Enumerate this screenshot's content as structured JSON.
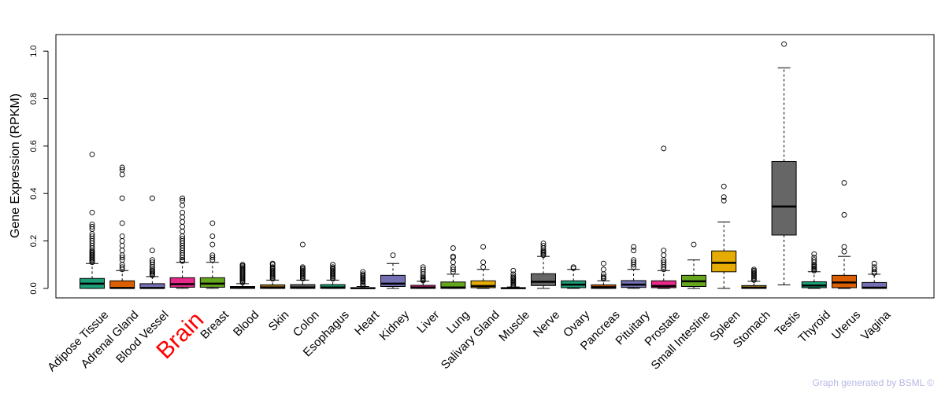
{
  "chart_data": {
    "type": "boxplot",
    "ylabel": "Gene Expression (RPKM)",
    "ylim": [
      -0.04,
      1.07
    ],
    "yticks": [
      0.0,
      0.2,
      0.4,
      0.6,
      0.8,
      1.0
    ],
    "ytick_labels": [
      "0.0",
      "0.2",
      "0.4",
      "0.6",
      "0.8",
      "1.0"
    ],
    "grid": false,
    "highlight_category": "Brain",
    "highlight_color": "#ff0000",
    "categories": [
      "Adipose Tissue",
      "Adrenal Gland",
      "Blood Vessel",
      "Brain",
      "Breast",
      "Blood",
      "Skin",
      "Colon",
      "Esophagus",
      "Heart",
      "Kidney",
      "Liver",
      "Lung",
      "Salivary Gland",
      "Muscle",
      "Nerve",
      "Ovary",
      "Pancreas",
      "Pituitary",
      "Prostate",
      "Small Intestine",
      "Spleen",
      "Stomach",
      "Testis",
      "Thyroid",
      "Uterus",
      "Vagina"
    ],
    "colors": [
      "#1b9e77",
      "#d95f02",
      "#7570b3",
      "#e7298a",
      "#66a61e",
      "#e6ab02",
      "#a6761d",
      "#666666",
      "#1b9e77",
      "#d95f02",
      "#7570b3",
      "#e7298a",
      "#66a61e",
      "#e6ab02",
      "#a6761d",
      "#666666",
      "#1b9e77",
      "#d95f02",
      "#7570b3",
      "#e7298a",
      "#66a61e",
      "#e6ab02",
      "#a6761d",
      "#666666",
      "#1b9e77",
      "#d95f02",
      "#7570b3"
    ],
    "boxes": [
      {
        "min": 0.0,
        "q1": 0.0,
        "median": 0.02,
        "q3": 0.042,
        "max": 0.105,
        "outliers": [
          0.11,
          0.115,
          0.12,
          0.125,
          0.13,
          0.135,
          0.14,
          0.145,
          0.15,
          0.155,
          0.16,
          0.17,
          0.18,
          0.19,
          0.2,
          0.21,
          0.22,
          0.23,
          0.25,
          0.26,
          0.27,
          0.32,
          0.565
        ]
      },
      {
        "min": 0.0,
        "q1": 0.0,
        "median": 0.002,
        "q3": 0.032,
        "max": 0.075,
        "outliers": [
          0.08,
          0.09,
          0.1,
          0.12,
          0.13,
          0.14,
          0.16,
          0.18,
          0.2,
          0.22,
          0.275,
          0.38,
          0.48,
          0.5,
          0.51
        ]
      },
      {
        "min": 0.0,
        "q1": 0.0,
        "median": 0.002,
        "q3": 0.02,
        "max": 0.05,
        "outliers": [
          0.055,
          0.06,
          0.065,
          0.07,
          0.075,
          0.08,
          0.09,
          0.1,
          0.11,
          0.12,
          0.16,
          0.38
        ]
      },
      {
        "min": 0.0,
        "q1": 0.005,
        "median": 0.018,
        "q3": 0.045,
        "max": 0.11,
        "outliers": [
          0.115,
          0.12,
          0.13,
          0.14,
          0.15,
          0.16,
          0.17,
          0.18,
          0.19,
          0.2,
          0.21,
          0.22,
          0.24,
          0.26,
          0.28,
          0.3,
          0.32,
          0.35,
          0.37,
          0.38
        ]
      },
      {
        "min": 0.0,
        "q1": 0.005,
        "median": 0.02,
        "q3": 0.045,
        "max": 0.11,
        "outliers": [
          0.12,
          0.13,
          0.14,
          0.185,
          0.22,
          0.275
        ]
      },
      {
        "min": 0.0,
        "q1": 0.0,
        "median": 0.003,
        "q3": 0.008,
        "max": 0.02,
        "outliers": [
          0.025,
          0.03,
          0.035,
          0.04,
          0.045,
          0.05,
          0.055,
          0.06,
          0.065,
          0.07,
          0.075,
          0.08,
          0.085,
          0.09,
          0.095,
          0.1
        ]
      },
      {
        "min": 0.0,
        "q1": 0.0,
        "median": 0.004,
        "q3": 0.015,
        "max": 0.035,
        "outliers": [
          0.04,
          0.045,
          0.05,
          0.055,
          0.06,
          0.065,
          0.07,
          0.075,
          0.08,
          0.085,
          0.09,
          0.1,
          0.105
        ]
      },
      {
        "min": 0.0,
        "q1": 0.0,
        "median": 0.004,
        "q3": 0.016,
        "max": 0.035,
        "outliers": [
          0.04,
          0.045,
          0.05,
          0.055,
          0.06,
          0.065,
          0.07,
          0.075,
          0.08,
          0.085,
          0.09,
          0.185
        ]
      },
      {
        "min": 0.0,
        "q1": 0.0,
        "median": 0.004,
        "q3": 0.016,
        "max": 0.035,
        "outliers": [
          0.04,
          0.045,
          0.05,
          0.055,
          0.06,
          0.065,
          0.07,
          0.075,
          0.08,
          0.085,
          0.09,
          0.1
        ]
      },
      {
        "min": 0.0,
        "q1": 0.0,
        "median": 0.001,
        "q3": 0.003,
        "max": 0.008,
        "outliers": [
          0.012,
          0.018,
          0.025,
          0.03,
          0.035,
          0.04,
          0.045,
          0.05,
          0.055,
          0.06,
          0.07
        ]
      },
      {
        "min": 0.0,
        "q1": 0.008,
        "median": 0.02,
        "q3": 0.055,
        "max": 0.105,
        "outliers": [
          0.14
        ]
      },
      {
        "min": 0.0,
        "q1": 0.0,
        "median": 0.004,
        "q3": 0.013,
        "max": 0.03,
        "outliers": [
          0.033,
          0.036,
          0.04,
          0.045,
          0.05,
          0.06,
          0.07,
          0.08,
          0.09
        ]
      },
      {
        "min": 0.0,
        "q1": 0.0,
        "median": 0.004,
        "q3": 0.027,
        "max": 0.06,
        "outliers": [
          0.07,
          0.08,
          0.09,
          0.11,
          0.13,
          0.135,
          0.17
        ]
      },
      {
        "min": 0.0,
        "q1": 0.003,
        "median": 0.01,
        "q3": 0.032,
        "max": 0.08,
        "outliers": [
          0.09,
          0.11,
          0.175
        ]
      },
      {
        "min": 0.0,
        "q1": 0.0,
        "median": 0.001,
        "q3": 0.003,
        "max": 0.006,
        "outliers": [
          0.01,
          0.015,
          0.02,
          0.025,
          0.03,
          0.035,
          0.04,
          0.045,
          0.05,
          0.06,
          0.075
        ]
      },
      {
        "min": 0.0,
        "q1": 0.012,
        "median": 0.028,
        "q3": 0.062,
        "max": 0.135,
        "outliers": [
          0.14,
          0.145,
          0.15,
          0.155,
          0.16,
          0.17,
          0.18,
          0.19
        ]
      },
      {
        "min": 0.0,
        "q1": 0.003,
        "median": 0.016,
        "q3": 0.032,
        "max": 0.08,
        "outliers": [
          0.085,
          0.09
        ]
      },
      {
        "min": 0.0,
        "q1": 0.0,
        "median": 0.005,
        "q3": 0.015,
        "max": 0.032,
        "outliers": [
          0.04,
          0.045,
          0.05,
          0.06,
          0.08,
          0.105
        ]
      },
      {
        "min": 0.0,
        "q1": 0.004,
        "median": 0.016,
        "q3": 0.033,
        "max": 0.08,
        "outliers": [
          0.09,
          0.1,
          0.11,
          0.12,
          0.16,
          0.175
        ]
      },
      {
        "min": 0.0,
        "q1": 0.003,
        "median": 0.01,
        "q3": 0.032,
        "max": 0.075,
        "outliers": [
          0.08,
          0.09,
          0.1,
          0.11,
          0.12,
          0.14,
          0.16,
          0.59
        ]
      },
      {
        "min": 0.0,
        "q1": 0.008,
        "median": 0.03,
        "q3": 0.055,
        "max": 0.12,
        "outliers": [
          0.185
        ]
      },
      {
        "min": 0.0,
        "q1": 0.07,
        "median": 0.108,
        "q3": 0.158,
        "max": 0.28,
        "outliers": [
          0.37,
          0.385,
          0.43
        ]
      },
      {
        "min": 0.0,
        "q1": 0.0,
        "median": 0.003,
        "q3": 0.012,
        "max": 0.03,
        "outliers": [
          0.035,
          0.04,
          0.045,
          0.05,
          0.055,
          0.06,
          0.065,
          0.07,
          0.075,
          0.08
        ]
      },
      {
        "min": 0.015,
        "q1": 0.225,
        "median": 0.345,
        "q3": 0.535,
        "max": 0.93,
        "outliers": [
          1.03
        ]
      },
      {
        "min": 0.0,
        "q1": 0.003,
        "median": 0.012,
        "q3": 0.028,
        "max": 0.07,
        "outliers": [
          0.075,
          0.08,
          0.085,
          0.09,
          0.095,
          0.1,
          0.11,
          0.12,
          0.13,
          0.145
        ]
      },
      {
        "min": 0.0,
        "q1": 0.003,
        "median": 0.025,
        "q3": 0.055,
        "max": 0.135,
        "outliers": [
          0.155,
          0.175,
          0.31,
          0.445
        ]
      },
      {
        "min": 0.0,
        "q1": 0.0,
        "median": 0.003,
        "q3": 0.025,
        "max": 0.06,
        "outliers": [
          0.065,
          0.07,
          0.08,
          0.09,
          0.105
        ]
      }
    ]
  },
  "watermark": "Graph generated by BSML ©"
}
